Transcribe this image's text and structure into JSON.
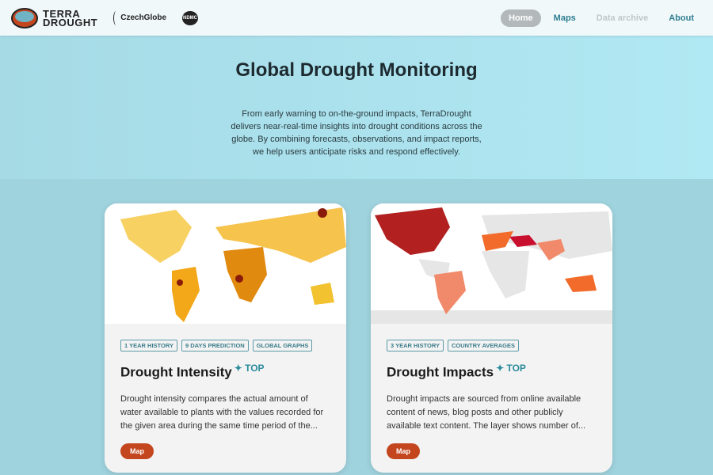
{
  "nav": {
    "logo_text": [
      "TERRA",
      "DROUGHT"
    ],
    "partner1": "CzechGlobe",
    "partner2": "NDMC",
    "items": [
      {
        "label": "Home",
        "active": true
      },
      {
        "label": "Maps"
      },
      {
        "label": "Data archive",
        "disabled": true
      },
      {
        "label": "About"
      }
    ]
  },
  "hero": {
    "title": "Global Drought Monitoring",
    "text": "From early warning to on-the-ground impacts, TerraDrought delivers near-real-time insights into drought conditions across the globe. By combining forecasts, observations, and impact reports, we help users anticipate risks and respond effectively."
  },
  "cards": [
    {
      "tags": [
        "1 YEAR HISTORY",
        "9 DAYS PREDICTION",
        "GLOBAL GRAPHS"
      ],
      "title": "Drought Intensity",
      "badge": "✦ TOP",
      "desc": "Drought intensity compares the actual amount of water available to plants with the values recorded for the given area during the same time period of the...",
      "button": "Map"
    },
    {
      "tags": [
        "3 YEAR HISTORY",
        "COUNTRY AVERAGES"
      ],
      "title": "Drought Impacts",
      "badge": "✦ TOP",
      "desc": "Drought impacts are sourced from online available content of news, blog posts and other publicly available text content. The layer shows number of...",
      "button": "Map"
    }
  ],
  "colors": {
    "accent": "#2f7f91",
    "button": "#c4461f"
  }
}
